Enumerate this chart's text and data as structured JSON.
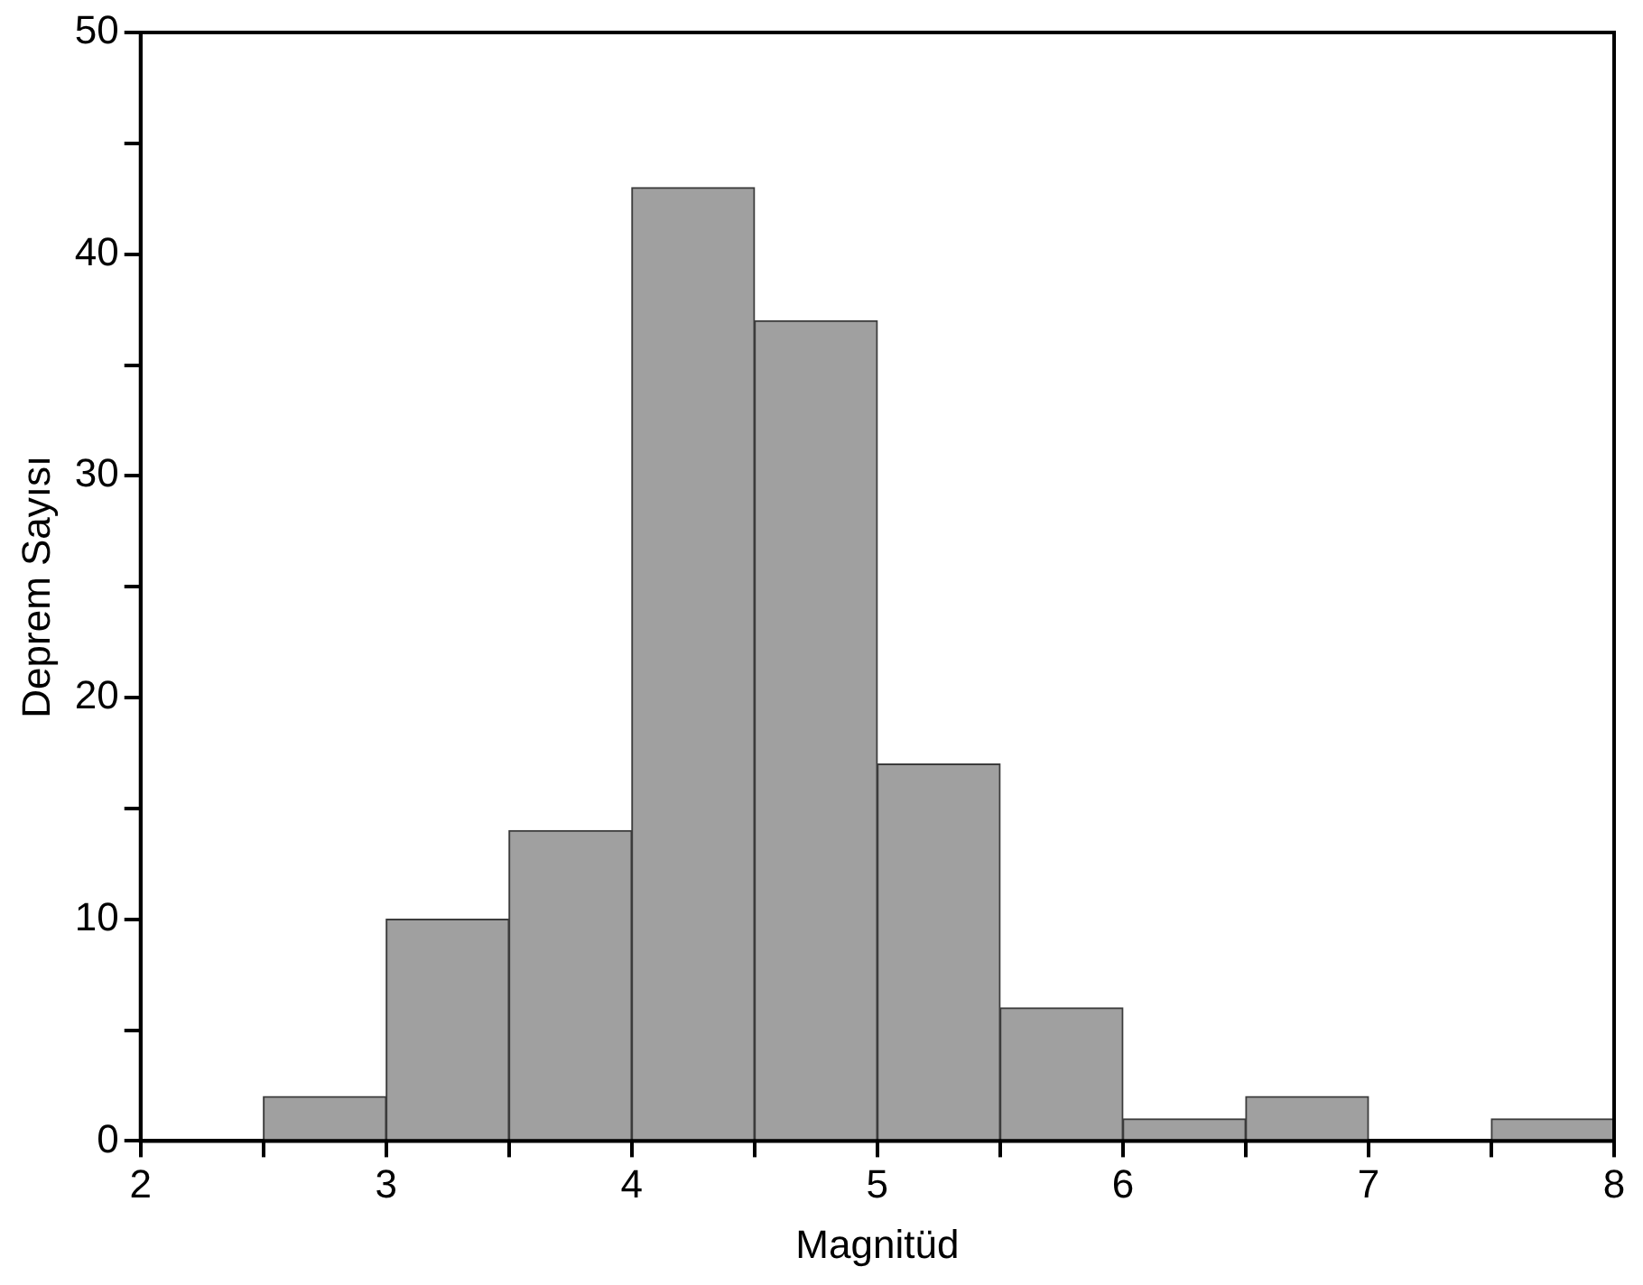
{
  "chart_data": {
    "type": "histogram",
    "xlabel": "Magnitüd",
    "ylabel": "Deprem Sayısı",
    "bins": [
      2.5,
      3,
      3.5,
      4,
      4.5,
      5,
      5.5,
      6,
      6.5,
      7,
      7.5,
      8
    ],
    "values": [
      2,
      10,
      14,
      43,
      37,
      17,
      6,
      1,
      2,
      0,
      1
    ],
    "color": "#a0a0a0",
    "xlim": [
      2,
      8
    ],
    "xticks": [
      2,
      {
        "value": 2.5,
        "label": null
      },
      3,
      {
        "value": 3.5,
        "label": null
      },
      4,
      {
        "value": 4.5,
        "label": null
      },
      5,
      {
        "value": 5.5,
        "label": null
      },
      6,
      {
        "value": 6.5,
        "label": null
      },
      7,
      {
        "value": 7.5,
        "label": null
      },
      8
    ],
    "ylim": [
      0,
      50
    ],
    "yticks": [
      0,
      {
        "value": 5,
        "label": null
      },
      10,
      {
        "value": 15,
        "label": null
      },
      20,
      {
        "value": 25,
        "label": null
      },
      30,
      {
        "value": 35,
        "label": null
      },
      40,
      {
        "value": 45,
        "label": null
      },
      50
    ]
  }
}
